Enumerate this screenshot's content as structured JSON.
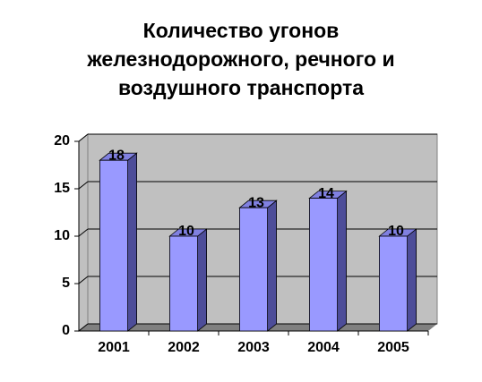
{
  "chart_data": {
    "type": "bar",
    "title": "Количество угонов железнодорожного, речного и воздушного транспорта",
    "categories": [
      "2001",
      "2002",
      "2003",
      "2004",
      "2005"
    ],
    "values": [
      18,
      10,
      13,
      14,
      10
    ],
    "color": "#9999ff",
    "ylim": [
      0,
      20
    ],
    "yticks": [
      0,
      5,
      10,
      15,
      20
    ],
    "grid": true
  }
}
